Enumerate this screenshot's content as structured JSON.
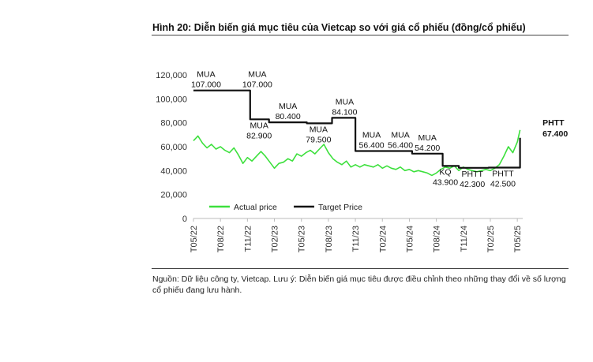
{
  "title": "Hình 20: Diễn biến giá mục tiêu của Vietcap so với giá cổ phiếu (đồng/cổ phiếu)",
  "source": "Nguồn: Dữ liệu công ty, Vietcap. Lưu ý: Diễn biến giá mục tiêu được điều chỉnh theo những thay đổi về số lượng cổ phiếu đang lưu hành.",
  "chart_data": {
    "type": "line",
    "ylim": [
      0,
      120000
    ],
    "y_ticks": [
      0,
      20000,
      40000,
      60000,
      80000,
      100000,
      120000
    ],
    "y_tick_labels": [
      "0",
      "20,000",
      "40,000",
      "60,000",
      "80,000",
      "100,000",
      "120,000"
    ],
    "xlim": [
      0,
      36.6
    ],
    "x_ticks": [
      0,
      3,
      6,
      9,
      12,
      15,
      18,
      21,
      24,
      27,
      30,
      33,
      36
    ],
    "x_tick_labels": [
      "T05/22",
      "T08/22",
      "T11/22",
      "T02/23",
      "T05/23",
      "T08/23",
      "T11/23",
      "T02/24",
      "T05/24",
      "T08/24",
      "T11/24",
      "T02/25",
      "T05/25"
    ],
    "legend": "bottom-left inside",
    "series": [
      {
        "name": "Actual price",
        "color": "#3de03d",
        "x": [
          0,
          0.5,
          1,
          1.5,
          2,
          2.5,
          3,
          3.5,
          4,
          4.5,
          5,
          5.5,
          6,
          6.5,
          7,
          7.5,
          8,
          8.5,
          9,
          9.5,
          10,
          10.5,
          11,
          11.5,
          12,
          12.5,
          13,
          13.5,
          14,
          14.5,
          15,
          15.5,
          16,
          16.5,
          17,
          17.5,
          18,
          18.5,
          19,
          19.5,
          20,
          20.5,
          21,
          21.5,
          22,
          22.5,
          23,
          23.5,
          24,
          24.5,
          25,
          25.5,
          26,
          26.5,
          27,
          27.5,
          28,
          28.5,
          29,
          29.5,
          30,
          30.5,
          31,
          31.5,
          32,
          32.5,
          33,
          33.5,
          34,
          34.5,
          35,
          35.5,
          36,
          36.3
        ],
        "values": [
          65000,
          69000,
          63000,
          59000,
          62000,
          58000,
          60000,
          57000,
          55000,
          59000,
          53000,
          46000,
          51000,
          48000,
          52000,
          56000,
          52000,
          47000,
          42000,
          46000,
          47000,
          50000,
          48000,
          54000,
          52000,
          55000,
          57000,
          54000,
          58000,
          62000,
          55000,
          50000,
          47000,
          45000,
          48000,
          43000,
          45000,
          43000,
          45000,
          44000,
          43000,
          45000,
          42000,
          44000,
          42000,
          41000,
          43000,
          40000,
          41000,
          39000,
          40000,
          39000,
          38000,
          36000,
          38000,
          41000,
          43000,
          42000,
          44000,
          40000,
          43000,
          41000,
          40000,
          39000,
          40000,
          41000,
          40000,
          42000,
          45000,
          52000,
          60000,
          55000,
          64000,
          74000
        ]
      },
      {
        "name": "Target Price",
        "color": "#111111",
        "x": [
          0,
          6.3,
          6.3,
          8.4,
          8.4,
          12.6,
          12.6,
          15.4,
          15.4,
          18,
          18,
          24.3,
          24.3,
          27.7,
          27.7,
          29.5,
          29.5,
          32.8,
          32.8,
          36.3,
          36.3
        ],
        "values": [
          107000,
          107000,
          82900,
          82900,
          80400,
          80400,
          79500,
          79500,
          84100,
          84100,
          56400,
          56400,
          54200,
          54200,
          43900,
          43900,
          42300,
          42300,
          42500,
          42500,
          67400
        ]
      }
    ],
    "annotations": [
      {
        "x": 1.4,
        "y": 107000,
        "lines": [
          "MUA",
          "107.000"
        ],
        "pos": "above",
        "bold": false
      },
      {
        "x": 7.1,
        "y": 107000,
        "lines": [
          "MUA",
          "107.000"
        ],
        "pos": "above",
        "bold": false
      },
      {
        "x": 7.3,
        "y": 82900,
        "lines": [
          "MUA",
          "82.900"
        ],
        "pos": "below",
        "bold": false
      },
      {
        "x": 10.5,
        "y": 80400,
        "lines": [
          "MUA",
          "80.400"
        ],
        "pos": "above",
        "bold": false
      },
      {
        "x": 13.9,
        "y": 79500,
        "lines": [
          "MUA",
          "79.500"
        ],
        "pos": "below",
        "bold": false
      },
      {
        "x": 16.8,
        "y": 84100,
        "lines": [
          "MUA",
          "84.100"
        ],
        "pos": "above",
        "bold": false
      },
      {
        "x": 19.8,
        "y": 56400,
        "lines": [
          "MUA",
          "56.400"
        ],
        "pos": "above",
        "bold": false
      },
      {
        "x": 23.0,
        "y": 56400,
        "lines": [
          "MUA",
          "56.400"
        ],
        "pos": "above",
        "bold": false
      },
      {
        "x": 26.0,
        "y": 54200,
        "lines": [
          "MUA",
          "54.200"
        ],
        "pos": "above",
        "bold": false
      },
      {
        "x": 28.0,
        "y": 43900,
        "lines": [
          "KQ",
          "43.900"
        ],
        "pos": "below",
        "bold": false
      },
      {
        "x": 31.0,
        "y": 42300,
        "lines": [
          "PHTT",
          "42.300"
        ],
        "pos": "below",
        "bold": false
      },
      {
        "x": 34.4,
        "y": 42500,
        "lines": [
          "PHTT",
          "42.500"
        ],
        "pos": "below",
        "bold": false
      },
      {
        "x": 38.8,
        "y": 67400,
        "lines": [
          "PHTT",
          "67.400"
        ],
        "pos": "right",
        "bold": true
      }
    ]
  }
}
